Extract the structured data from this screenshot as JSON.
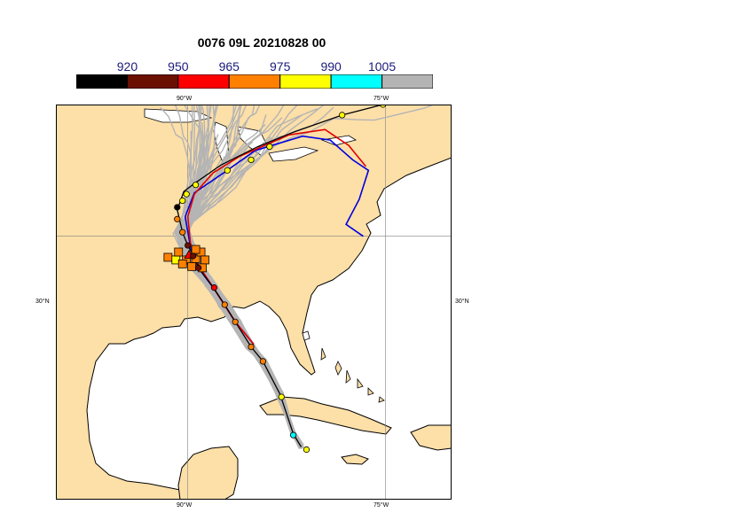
{
  "title": "0076 09L 20210828 00",
  "colorbar": {
    "segments": [
      {
        "color": "#000000"
      },
      {
        "color": "#6b1000"
      },
      {
        "color": "#ff0000"
      },
      {
        "color": "#ff8000"
      },
      {
        "color": "#ffff00"
      },
      {
        "color": "#00ffff"
      },
      {
        "color": "#b4b4b4"
      }
    ],
    "labels": [
      "920",
      "950",
      "965",
      "975",
      "990",
      "1005"
    ]
  },
  "map": {
    "extent": {
      "lon": [
        -100,
        -70
      ],
      "lat": [
        10,
        40
      ]
    },
    "land_color": "#fddfa8",
    "ocean_color": "#ffffff",
    "lon_labels": [
      {
        "lon": -90,
        "text": "90°W"
      },
      {
        "lon": -75,
        "text": "75°W"
      }
    ],
    "lat_labels": [
      {
        "lat": 30,
        "text": "30°N"
      }
    ]
  },
  "tracks": {
    "ensemble_color": "#b4b4b4",
    "black_track": [
      [
        -81.4,
        14.0
      ],
      [
        -82.0,
        15.0
      ],
      [
        -83.0,
        18.0
      ],
      [
        -84.3,
        20.5
      ],
      [
        -85.2,
        21.6
      ],
      [
        -86.4,
        23.5
      ],
      [
        -87.2,
        24.8
      ],
      [
        -88.2,
        26.3
      ],
      [
        -89.2,
        27.6
      ],
      [
        -89.6,
        28.6
      ],
      [
        -90.0,
        29.3
      ],
      [
        -90.4,
        30.3
      ],
      [
        -90.8,
        32.0
      ],
      [
        -90.3,
        33.4
      ],
      [
        -89.5,
        34.0
      ],
      [
        -87.5,
        35.4
      ],
      [
        -84.7,
        36.8
      ],
      [
        -82.0,
        37.9
      ],
      [
        -78.3,
        39.2
      ],
      [
        -75.2,
        40.0
      ],
      [
        -72.3,
        40.3
      ]
    ],
    "red_track": [
      [
        -85.0,
        21.8
      ],
      [
        -86.4,
        23.5
      ],
      [
        -88.0,
        26.0
      ],
      [
        -89.2,
        27.8
      ],
      [
        -89.8,
        29.5
      ],
      [
        -90.0,
        31.5
      ],
      [
        -89.5,
        33.2
      ],
      [
        -88.1,
        34.8
      ],
      [
        -86.0,
        36.1
      ],
      [
        -82.3,
        37.7
      ],
      [
        -79.6,
        38.1
      ],
      [
        -77.8,
        36.9
      ],
      [
        -76.5,
        35.3
      ]
    ],
    "blue_track": [
      [
        -85.0,
        21.8
      ],
      [
        -86.4,
        23.5
      ],
      [
        -88.0,
        26.0
      ],
      [
        -89.2,
        27.6
      ],
      [
        -89.8,
        29.2
      ],
      [
        -90.2,
        31.5
      ],
      [
        -89.5,
        33.3
      ],
      [
        -87.3,
        34.8
      ],
      [
        -84.9,
        36.5
      ],
      [
        -81.3,
        37.6
      ],
      [
        -79.2,
        37.3
      ],
      [
        -77.5,
        35.8
      ],
      [
        -76.3,
        35.0
      ],
      [
        -77.0,
        32.8
      ],
      [
        -78.0,
        30.9
      ],
      [
        -76.7,
        30.0
      ]
    ],
    "black_markers": [
      {
        "lon": -81.0,
        "lat": 13.8,
        "level": "990"
      },
      {
        "lon": -82.0,
        "lat": 14.9,
        "level": "1005"
      },
      {
        "lon": -82.9,
        "lat": 17.8,
        "level": "990"
      },
      {
        "lon": -84.3,
        "lat": 20.5,
        "level": "975"
      },
      {
        "lon": -85.2,
        "lat": 21.6,
        "level": "975"
      },
      {
        "lon": -86.4,
        "lat": 23.5,
        "level": "975"
      },
      {
        "lon": -87.2,
        "lat": 24.8,
        "level": "975"
      },
      {
        "lon": -88.0,
        "lat": 26.1,
        "level": "965"
      },
      {
        "lon": -89.2,
        "lat": 27.6,
        "level": "950"
      },
      {
        "lon": -89.6,
        "lat": 28.5,
        "level": "950"
      },
      {
        "lon": -90.0,
        "lat": 29.3,
        "level": "950"
      },
      {
        "lon": -90.4,
        "lat": 30.3,
        "level": "975"
      },
      {
        "lon": -90.8,
        "lat": 31.3,
        "level": "975"
      },
      {
        "lon": -90.8,
        "lat": 32.2,
        "level": "920"
      },
      {
        "lon": -90.4,
        "lat": 32.7,
        "level": "990"
      },
      {
        "lon": -90.1,
        "lat": 33.2,
        "level": "990"
      },
      {
        "lon": -89.4,
        "lat": 33.9,
        "level": "990"
      },
      {
        "lon": -87.0,
        "lat": 35.0,
        "level": "990"
      },
      {
        "lon": -85.2,
        "lat": 35.8,
        "level": "990"
      },
      {
        "lon": -83.8,
        "lat": 36.8,
        "level": "990"
      },
      {
        "lon": -78.3,
        "lat": 39.2,
        "level": "990"
      },
      {
        "lon": -75.2,
        "lat": 40.0,
        "level": "990"
      },
      {
        "lon": -72.3,
        "lat": 40.3,
        "level": "990"
      }
    ],
    "triangle_marker": {
      "lon": -89.9,
      "lat": 28.6,
      "level": "965"
    },
    "square_markers": [
      {
        "lon": -91.5,
        "lat": 28.4,
        "level": "975"
      },
      {
        "lon": -90.9,
        "lat": 28.2,
        "level": "990"
      },
      {
        "lon": -90.7,
        "lat": 28.8,
        "level": "975"
      },
      {
        "lon": -90.1,
        "lat": 28.2,
        "level": "975"
      },
      {
        "lon": -89.7,
        "lat": 27.7,
        "level": "975"
      },
      {
        "lon": -89.4,
        "lat": 28.3,
        "level": "975"
      },
      {
        "lon": -89.0,
        "lat": 28.8,
        "level": "975"
      },
      {
        "lon": -88.7,
        "lat": 28.2,
        "level": "975"
      },
      {
        "lon": -89.4,
        "lat": 29.0,
        "level": "975"
      },
      {
        "lon": -88.9,
        "lat": 27.6,
        "level": "975"
      },
      {
        "lon": -90.4,
        "lat": 27.9,
        "level": "975"
      }
    ]
  }
}
